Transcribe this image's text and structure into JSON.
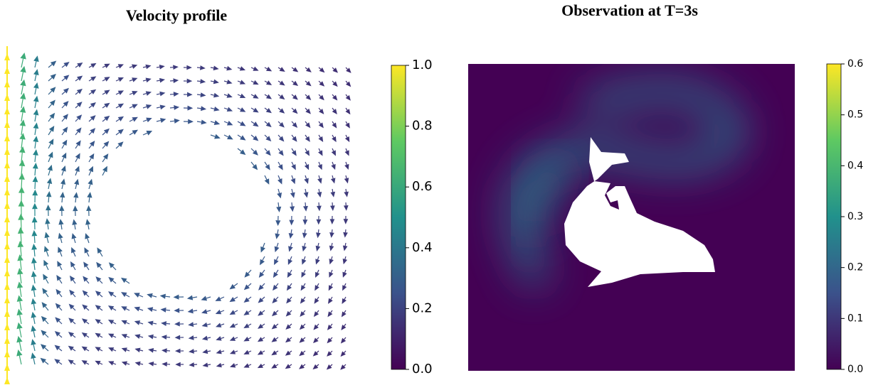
{
  "chart_data": [
    {
      "type": "quiver",
      "title": "Velocity profile",
      "colormap": "viridis",
      "colorbar": {
        "lim": [
          0,
          1
        ],
        "ticks": [
          {
            "value": 0,
            "label": "0.0"
          },
          {
            "value": 0.2,
            "label": "0.2"
          },
          {
            "value": 0.4,
            "label": "0.4"
          },
          {
            "value": 0.6,
            "label": "0.6"
          },
          {
            "value": 0.8,
            "label": "0.8"
          },
          {
            "value": 1,
            "label": "1.0"
          }
        ]
      }
    },
    {
      "type": "heatmap",
      "title": "Observation at T=3s",
      "colormap": "viridis",
      "colorbar": {
        "lim": [
          0,
          0.6
        ],
        "ticks": [
          {
            "value": 0,
            "label": "0.0"
          },
          {
            "value": 0.1,
            "label": "0.1"
          },
          {
            "value": 0.2,
            "label": "0.2"
          },
          {
            "value": 0.3,
            "label": "0.3"
          },
          {
            "value": 0.4,
            "label": "0.4"
          },
          {
            "value": 0.5,
            "label": "0.5"
          },
          {
            "value": 0.6,
            "label": "0.6"
          }
        ]
      }
    }
  ]
}
